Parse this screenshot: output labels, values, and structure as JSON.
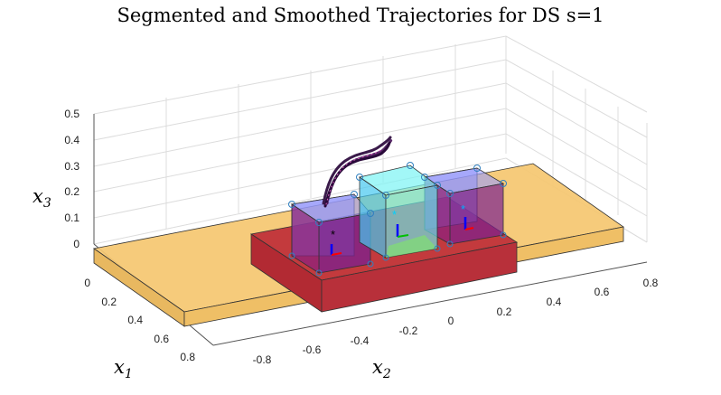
{
  "chart_data": {
    "type": "3d-scatter",
    "title": "Segmented and Smoothed Trajectories for DS s=1",
    "xlabel": {
      "base": "x",
      "sub": "1"
    },
    "ylabel": {
      "base": "x",
      "sub": "2"
    },
    "zlabel": {
      "base": "x",
      "sub": "3"
    },
    "x1_ticks": [
      "0",
      "0.2",
      "0.4",
      "0.6",
      "0.8"
    ],
    "x2_ticks": [
      "-0.8",
      "-0.6",
      "-0.4",
      "-0.2",
      "0",
      "0.2",
      "0.4",
      "0.6",
      "0.8"
    ],
    "x3_ticks": [
      "0",
      "0.1",
      "0.2",
      "0.3",
      "0.4",
      "0.5"
    ],
    "x1_lim": [
      0,
      0.8
    ],
    "x2_lim": [
      -0.8,
      0.8
    ],
    "x3_lim": [
      0,
      0.5
    ],
    "grid": true,
    "colors": {
      "table": "#f5c770",
      "block": "#c0323a",
      "box_left": "#8a8cf0",
      "box_mid": "#66f0f0",
      "box_right": "#8a8cf0",
      "trajectory": "#3a1a4a",
      "attractor_left": "#000000",
      "attractor_mid": "#00d0ff",
      "attractor_right": "#00b0ff"
    }
  }
}
